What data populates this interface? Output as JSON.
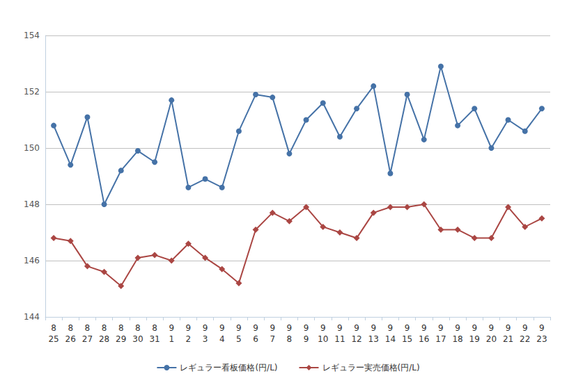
{
  "chart_data": {
    "type": "line",
    "categories": [
      "8\n25",
      "8\n26",
      "8\n27",
      "8\n28",
      "8\n29",
      "8\n30",
      "8\n31",
      "9\n1",
      "9\n2",
      "9\n3",
      "9\n4",
      "9\n5",
      "9\n6",
      "9\n7",
      "9\n8",
      "9\n9",
      "9\n10",
      "9\n11",
      "9\n12",
      "9\n13",
      "9\n14",
      "9\n15",
      "9\n16",
      "9\n17",
      "9\n18",
      "9\n19",
      "9\n20",
      "9\n21",
      "9\n22",
      "9\n23"
    ],
    "series": [
      {
        "name": "レギュラー看板価格(円/L)",
        "color": "#4572a7",
        "marker": "circle",
        "values": [
          150.8,
          149.4,
          151.1,
          148.0,
          149.2,
          149.9,
          149.5,
          151.7,
          148.6,
          148.9,
          148.6,
          150.6,
          151.9,
          151.8,
          149.8,
          151.0,
          151.6,
          150.4,
          151.4,
          152.2,
          149.1,
          151.9,
          150.3,
          152.9,
          150.8,
          151.4,
          150.0,
          151.0,
          150.6,
          151.4
        ]
      },
      {
        "name": "レギュラー実売価格(円/L)",
        "color": "#aa4643",
        "marker": "diamond",
        "values": [
          146.8,
          146.7,
          145.8,
          145.6,
          145.1,
          146.1,
          146.2,
          146.0,
          146.6,
          146.1,
          145.7,
          145.2,
          147.1,
          147.7,
          147.4,
          147.9,
          147.2,
          147.0,
          146.8,
          147.7,
          147.9,
          147.9,
          148.0,
          147.1,
          147.1,
          146.8,
          146.8,
          147.9,
          147.2,
          147.5
        ]
      }
    ],
    "ylim": [
      144,
      154
    ],
    "yticks": [
      144,
      146,
      148,
      150,
      152,
      154
    ],
    "grid": true,
    "legend": "bottom"
  }
}
